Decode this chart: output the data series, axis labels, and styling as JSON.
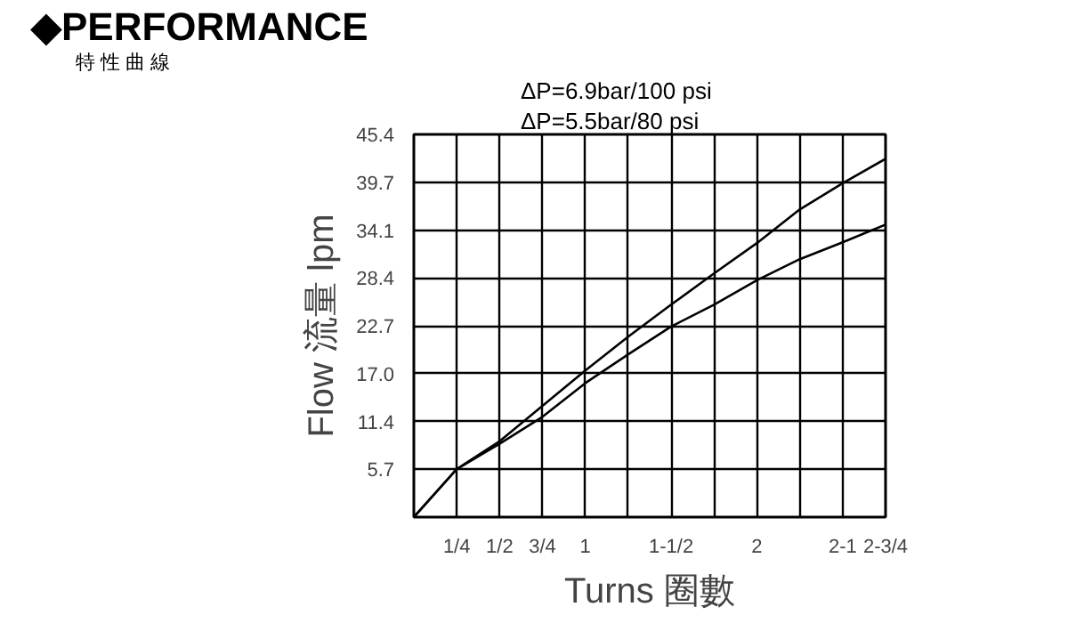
{
  "chart_data": {
    "type": "line",
    "title": "◆PERFORMANCE",
    "subtitle": "特 性 曲 線",
    "xlabel": "Turns 圈數",
    "ylabel": "Flow 流量 lpm",
    "annotations": [
      "ΔP=6.9bar/100 psi",
      "ΔP=5.5bar/80 psi"
    ],
    "x": [
      0,
      0.25,
      0.5,
      0.75,
      1,
      1.25,
      1.5,
      1.75,
      2,
      2.25,
      2.5,
      2.75
    ],
    "series": [
      {
        "color": "#000000",
        "values": [
          0,
          5.7,
          9.0,
          13.2,
          17.4,
          21.4,
          25.2,
          28.9,
          32.5,
          36.5,
          39.6,
          42.5
        ]
      },
      {
        "color": "#000000",
        "values": [
          0,
          5.7,
          8.7,
          11.9,
          15.9,
          19.3,
          22.6,
          25.2,
          28.1,
          30.6,
          32.6,
          34.7
        ]
      }
    ],
    "xlim": [
      0,
      2.75
    ],
    "ylim": [
      0,
      45.4
    ],
    "xticks": [
      {
        "value": 0,
        "label": null
      },
      {
        "value": 0.25,
        "label": "1/4"
      },
      {
        "value": 0.5,
        "label": "1/2"
      },
      {
        "value": 0.75,
        "label": "3/4"
      },
      1,
      {
        "value": 1.25,
        "label": null
      },
      {
        "value": 1.5,
        "label": "1-1/2"
      },
      {
        "value": 1.75,
        "label": null
      },
      2,
      {
        "value": 2.25,
        "label": null
      },
      {
        "value": 2.5,
        "label": "2-1"
      },
      {
        "value": 2.75,
        "label": "2-3/4"
      }
    ],
    "yticks": [
      {
        "value": 0,
        "label": null
      },
      {
        "value": 5.675,
        "label": "5.7"
      },
      {
        "value": 11.35,
        "label": "11.4"
      },
      {
        "value": 17.025,
        "label": "17.0"
      },
      {
        "value": 22.7,
        "label": "22.7"
      },
      {
        "value": 28.375,
        "label": "28.4"
      },
      {
        "value": 34.05,
        "label": "34.1"
      },
      {
        "value": 39.725,
        "label": "39.7"
      },
      {
        "value": 45.4,
        "label": "45.4"
      }
    ],
    "grid": true,
    "marker": "none",
    "line_style": "solid"
  }
}
